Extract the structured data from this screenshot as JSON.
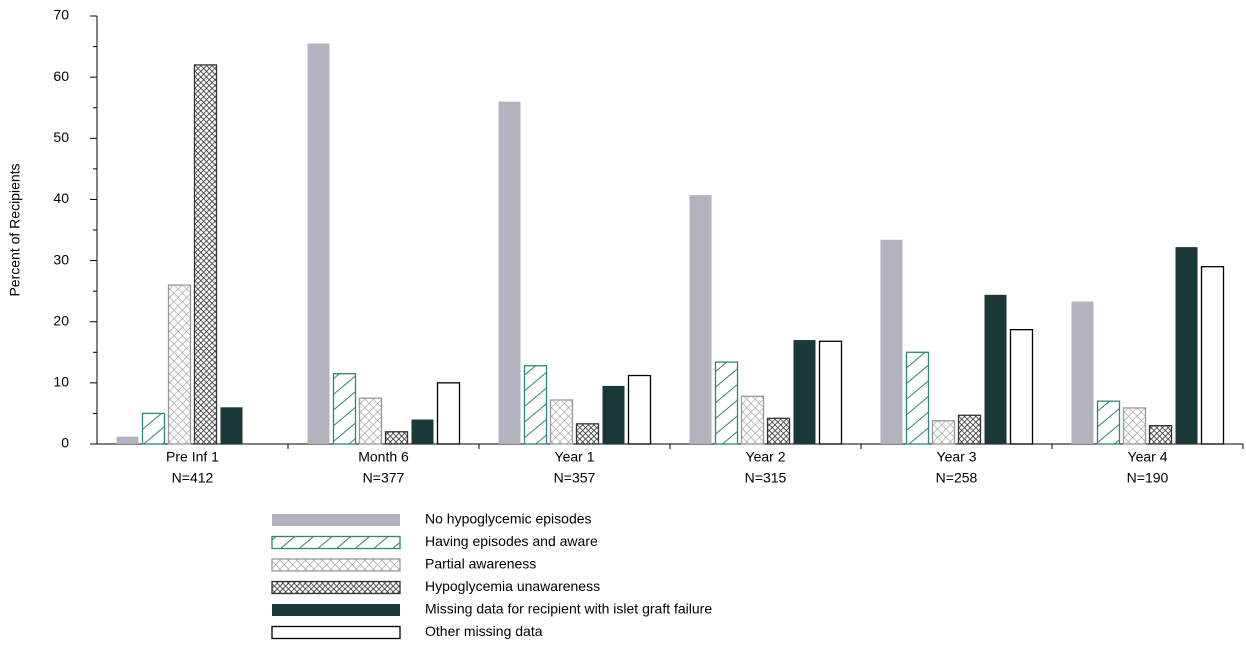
{
  "chart_data": {
    "type": "bar",
    "y_label": "Percent of Recipients",
    "categories": [
      "Pre Inf 1",
      "Month 6",
      "Year 1",
      "Year 2",
      "Year 3",
      "Year 4"
    ],
    "category_sublabels": [
      "N=412",
      "N=377",
      "N=357",
      "N=315",
      "N=258",
      "N=190"
    ],
    "ylim": [
      0,
      70
    ],
    "yticks": [
      0,
      10,
      20,
      30,
      40,
      50,
      60,
      70
    ],
    "series": [
      {
        "name": "No hypoglycemic episodes",
        "color": "#b3b3bf",
        "fill_style": "solid",
        "values": [
          1.2,
          65.5,
          56,
          40.7,
          33.4,
          23.3
        ]
      },
      {
        "name": "Having episodes and aware",
        "color": "#2e8578",
        "fill_style": "hatch",
        "values": [
          5,
          11.5,
          12.8,
          13.4,
          15,
          7
        ]
      },
      {
        "name": "Partial awareness",
        "color": "#999999",
        "fill_style": "cross",
        "values": [
          26,
          7.5,
          7.2,
          7.8,
          3.8,
          5.9
        ]
      },
      {
        "name": "Hypoglycemia unawareness",
        "color": "#333333",
        "fill_style": "dense-cross",
        "values": [
          62,
          2,
          3.3,
          4.2,
          4.7,
          3
        ]
      },
      {
        "name": "Missing data for recipient with islet graft failure",
        "color": "#1b3838",
        "fill_style": "solid",
        "values": [
          6,
          4,
          9.5,
          17,
          24.4,
          32.2
        ]
      },
      {
        "name": "Other missing data",
        "color": "#000000",
        "fill_style": "outline",
        "values": [
          0,
          10,
          11.2,
          16.8,
          18.7,
          29
        ]
      }
    ]
  }
}
